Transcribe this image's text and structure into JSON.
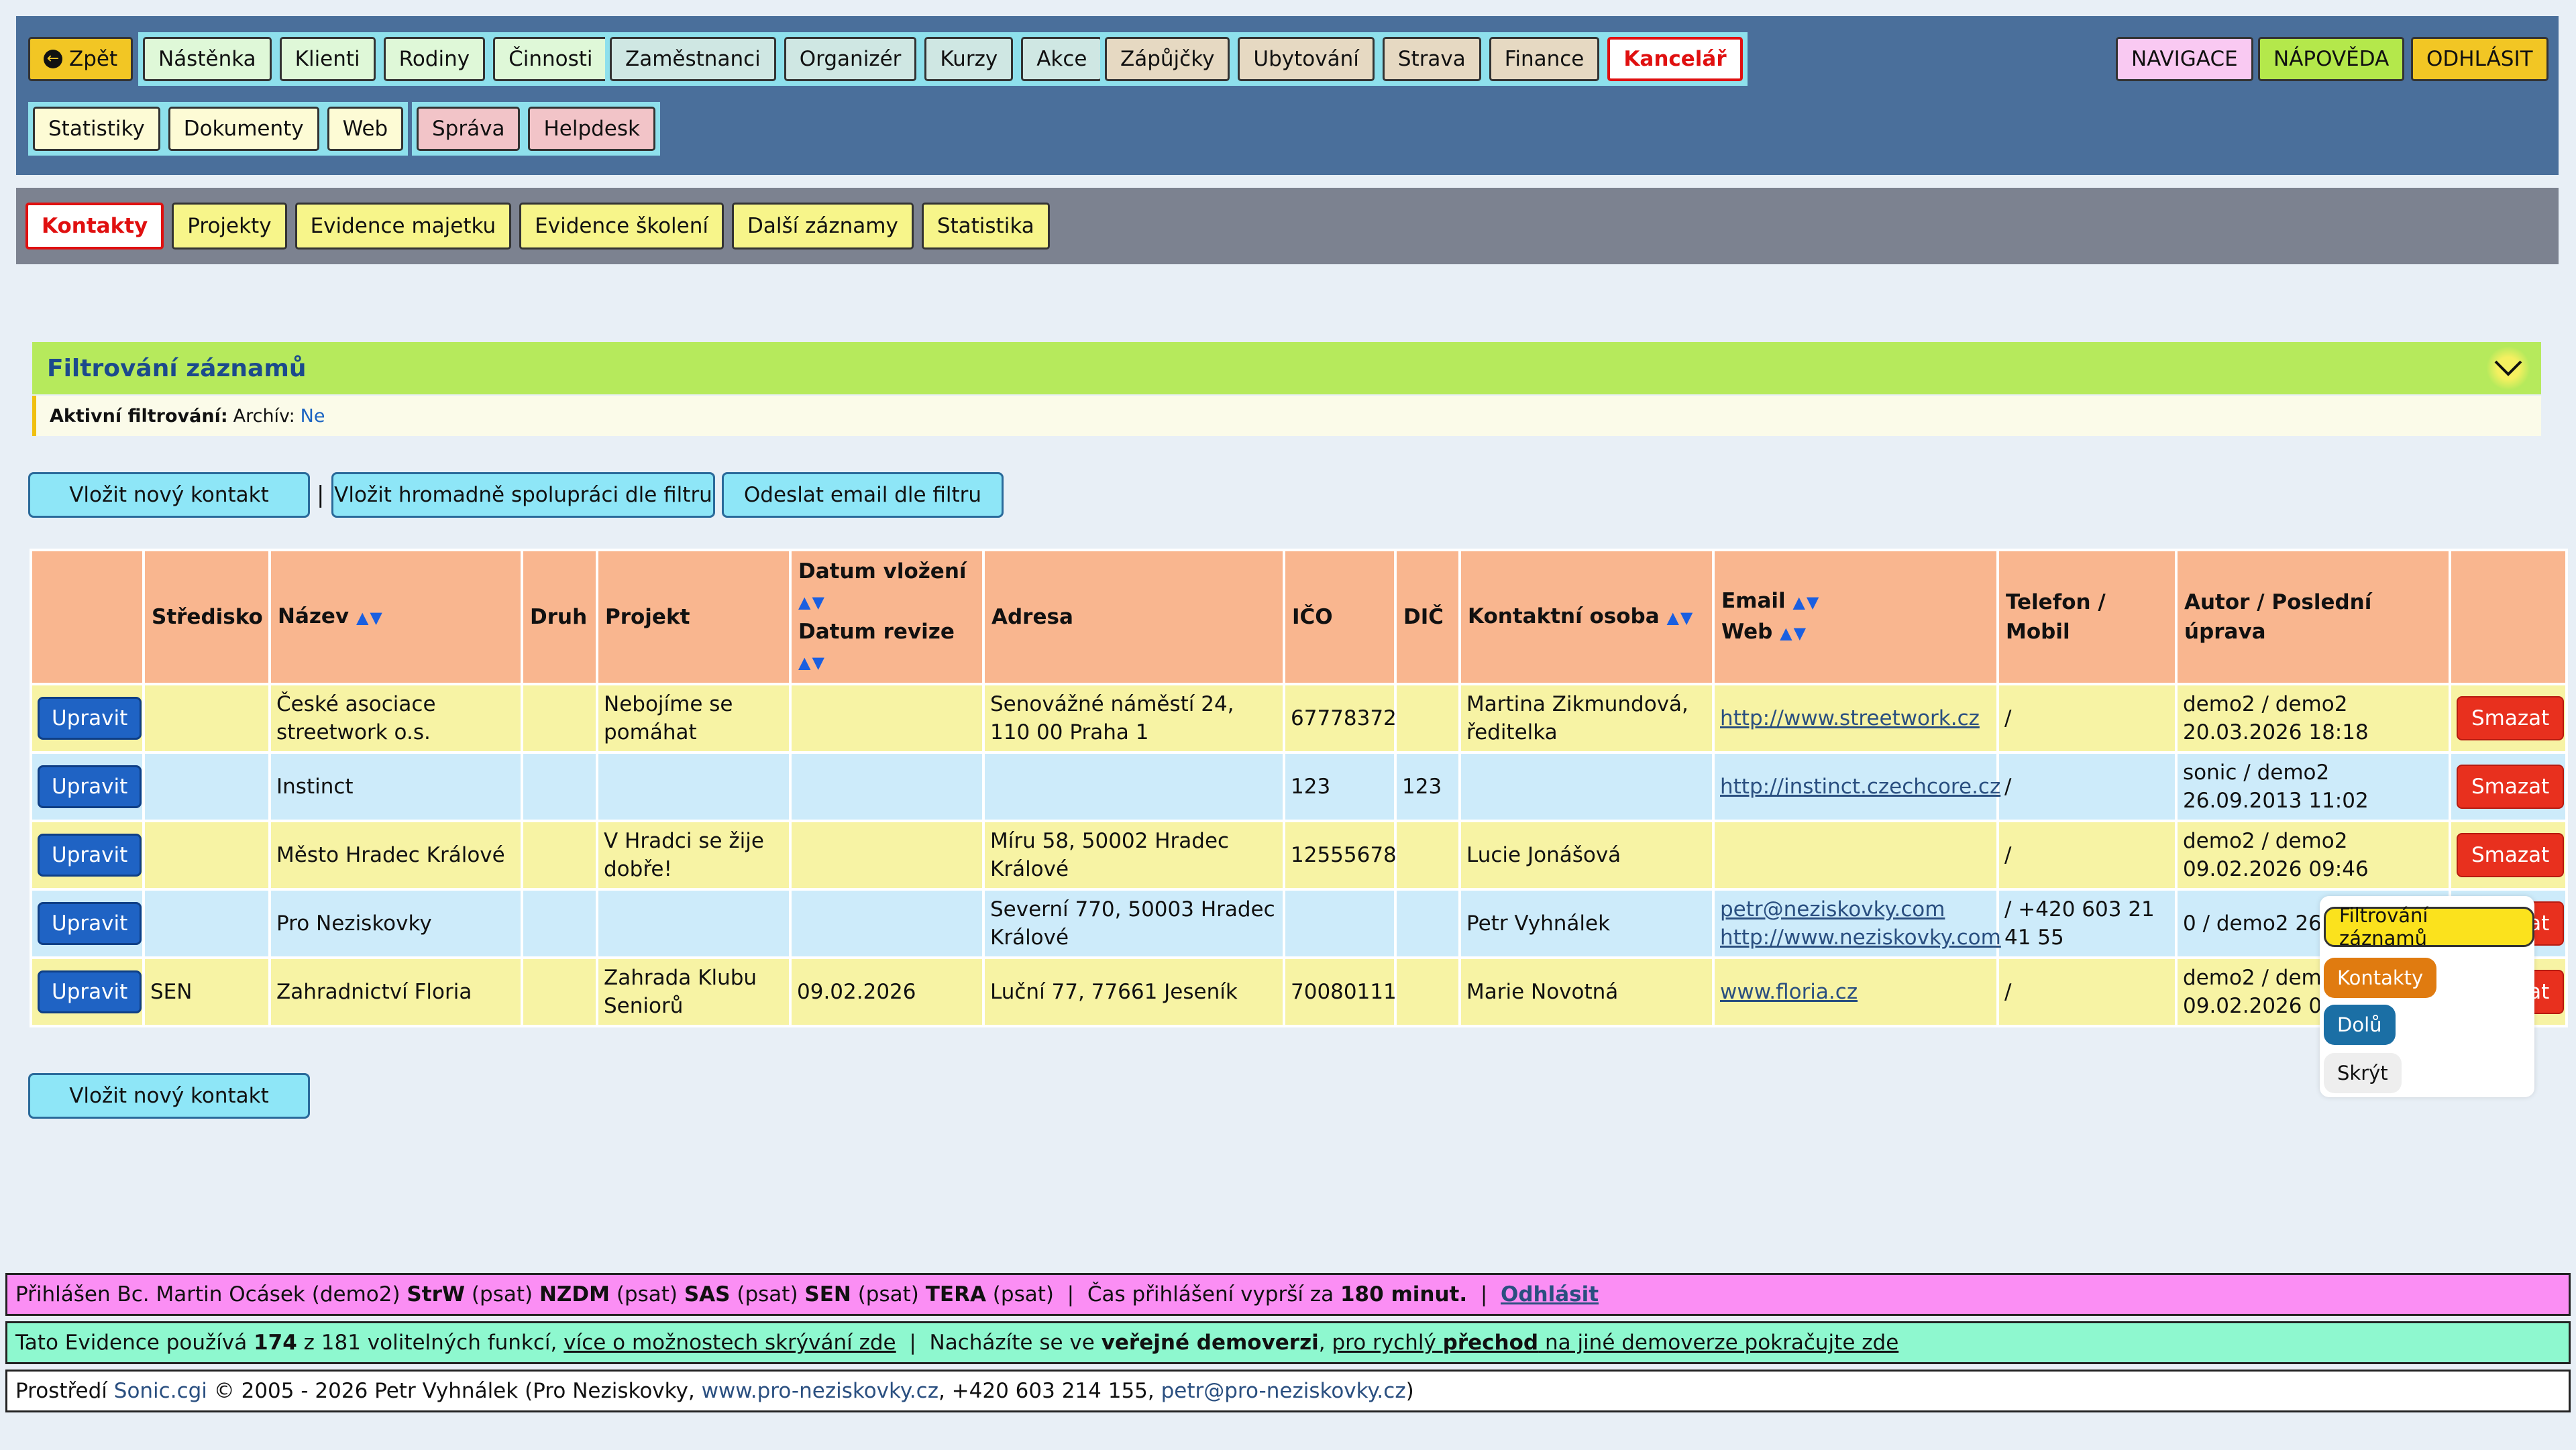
{
  "nav": {
    "back_label": "Zpět",
    "group1": [
      "Nástěnka",
      "Klienti",
      "Rodiny",
      "Činnosti"
    ],
    "group2": [
      "Zaměstnanci",
      "Organizér",
      "Kurzy",
      "Akce"
    ],
    "group3": [
      "Zápůjčky",
      "Ubytování",
      "Strava",
      "Finance",
      "Kancelář"
    ],
    "group4": [
      "Statistiky",
      "Dokumenty",
      "Web"
    ],
    "group5": [
      "Správa",
      "Helpdesk"
    ],
    "right": [
      "NAVIGACE",
      "NÁPOVĚDA",
      "ODHLÁSIT"
    ]
  },
  "subnav": [
    "Kontakty",
    "Projekty",
    "Evidence majetku",
    "Evidence školení",
    "Další záznamy",
    "Statistika"
  ],
  "filter": {
    "title": "Filtrování záznamů",
    "active_label": "Aktivní filtrování:",
    "archive_label": "Archív:",
    "archive_value": "Ne"
  },
  "actions": {
    "new_contact": "Vložit nový kontakt",
    "separator": "|",
    "bulk": "Vložit hromadně spolupráci dle filtru",
    "email": "Odeslat email dle filtru",
    "new_contact_bottom": "Vložit nový kontakt"
  },
  "table": {
    "headers": {
      "stredisko": "Středisko",
      "nazev": "Název",
      "druh": "Druh",
      "projekt": "Projekt",
      "datum_vlozeni": "Datum vložení",
      "datum_revize": "Datum revize",
      "adresa": "Adresa",
      "ico": "IČO",
      "dic": "DIČ",
      "kontakt": "Kontaktní osoba",
      "email": "Email",
      "web": "Web",
      "telefon": "Telefon / Mobil",
      "autor": "Autor / Poslední úprava"
    },
    "sort_arrows": "▲▼",
    "edit_label": "Upravit",
    "delete_label": "Smazat",
    "rows": [
      {
        "stredisko": "",
        "nazev": "České asociace streetwork o.s.",
        "druh": "",
        "projekt": "Nebojíme se pomáhat",
        "datum": "",
        "adresa": "Senovážné náměstí 24, 110 00 Praha 1",
        "ico": "67778372",
        "dic": "",
        "kontakt": "Martina Zikmundová, ředitelka",
        "email": "",
        "web": "http://www.streetwork.cz",
        "telefon": "/",
        "autor": "demo2 / demo2 20.03.2026 18:18"
      },
      {
        "stredisko": "",
        "nazev": "Instinct",
        "druh": "",
        "projekt": "",
        "datum": "",
        "adresa": "",
        "ico": "123",
        "dic": "123",
        "kontakt": "",
        "email": "",
        "web": "http://instinct.czechcore.cz",
        "telefon": "/",
        "autor": "sonic / demo2 26.09.2013 11:02"
      },
      {
        "stredisko": "",
        "nazev": "Město Hradec Králové",
        "druh": "",
        "projekt": "V Hradci se žije dobře!",
        "datum": "",
        "adresa": "Míru 58, 50002 Hradec Králové",
        "ico": "12555678",
        "dic": "",
        "kontakt": "Lucie Jonášová",
        "email": "",
        "web": "",
        "telefon": "/",
        "autor": "demo2 / demo2 09.02.2026 09:46"
      },
      {
        "stredisko": "",
        "nazev": "Pro Neziskovky",
        "druh": "",
        "projekt": "",
        "datum": "",
        "adresa": "Severní 770, 50003 Hradec Králové",
        "ico": "",
        "dic": "",
        "kontakt": "Petr Vyhnálek",
        "email": "petr@neziskovky.com",
        "web": "http://www.neziskovky.com",
        "telefon": "/ +420 603 21 41 55",
        "autor": "0 / demo2 26.09 11:04"
      },
      {
        "stredisko": "SEN",
        "nazev": "Zahradnictví Floria",
        "druh": "",
        "projekt": "Zahrada Klubu Seniorů",
        "datum": "09.02.2026",
        "adresa": "Luční 77, 77661 Jeseník",
        "ico": "70080111",
        "dic": "",
        "kontakt": "Marie Novotná",
        "email": "",
        "web": "www.floria.cz",
        "telefon": "/",
        "autor": "demo2 / demo2 09.02.2026 09:4"
      }
    ]
  },
  "floating": [
    "Filtrování záznamů",
    "Kontakty",
    "Dolů",
    "Skrýt"
  ],
  "bottom": {
    "line1": {
      "prefix": "Přihlášen Bc. Martin Ocásek (demo2) ",
      "r1": "StrW",
      "p1": " (psat) ",
      "r2": "NZDM",
      "p2": " (psat) ",
      "r3": "SAS",
      "p3": " (psat) ",
      "r4": "SEN",
      "p4": " (psat) ",
      "r5": "TERA",
      "p5": " (psat)  |  Čas přihlášení vyprší za ",
      "minutes": "180 minut.",
      "sep": "  |  ",
      "logout": "Odhlásit"
    },
    "line2": {
      "a": "Tato Evidence používá ",
      "count": "174",
      "b": " z 181 volitelných funkcí, ",
      "link1": "více o možnostech skrývání zde",
      "c": "  |  Nacházíte se ve ",
      "public": "veřejné demoverzi",
      "d": ", ",
      "link2a": "pro rychlý ",
      "link2b": "přechod",
      "link2c": " na jiné demoverze pokračujte zde"
    },
    "line3": {
      "a": "Prostředí ",
      "sonic": "Sonic.cgi",
      "b": " © 2005 - 2026 Petr Vyhnálek (Pro Neziskovky, ",
      "url": "www.pro-neziskovky.cz",
      "c": ", +420 603 214 155, ",
      "mail": "petr@pro-neziskovky.cz",
      "d": ")"
    }
  }
}
